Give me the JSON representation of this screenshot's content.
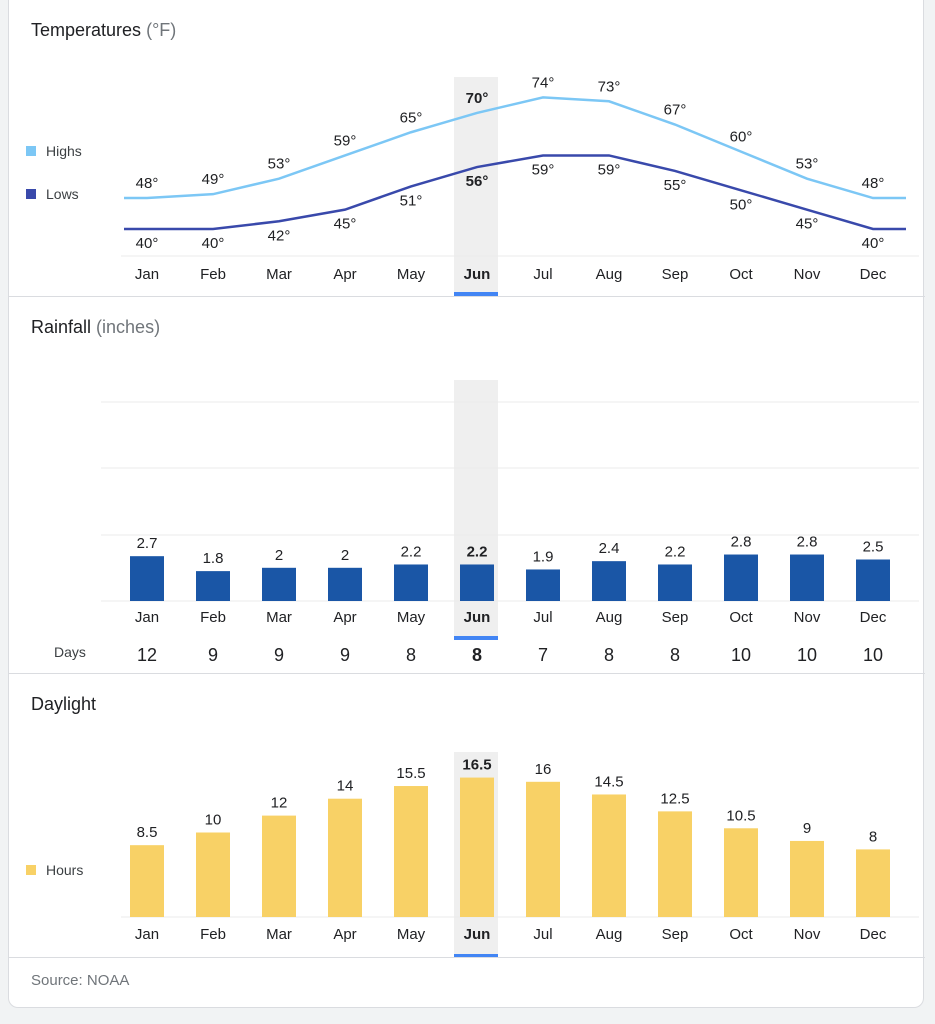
{
  "months": [
    "Jan",
    "Feb",
    "Mar",
    "Apr",
    "May",
    "Jun",
    "Jul",
    "Aug",
    "Sep",
    "Oct",
    "Nov",
    "Dec"
  ],
  "selected_month_index": 5,
  "temperatures": {
    "title": "Temperatures",
    "unit": "(°F)",
    "legend_highs": "Highs",
    "legend_lows": "Lows"
  },
  "rainfall": {
    "title": "Rainfall",
    "unit": "(inches)",
    "days_label": "Days"
  },
  "daylight": {
    "title": "Daylight",
    "legend_hours": "Hours"
  },
  "source": "Source: NOAA",
  "colors": {
    "highs": "#7cc7f5",
    "lows": "#3949ab",
    "rain": "#1a56a6",
    "daylight": "#f8d166",
    "selected_tab": "#4285f4",
    "highlight": "#efefef"
  },
  "chart_data": [
    {
      "type": "line",
      "title": "Temperatures (°F)",
      "categories": [
        "Jan",
        "Feb",
        "Mar",
        "Apr",
        "May",
        "Jun",
        "Jul",
        "Aug",
        "Sep",
        "Oct",
        "Nov",
        "Dec"
      ],
      "series": [
        {
          "name": "Highs",
          "values": [
            48,
            49,
            53,
            59,
            65,
            70,
            74,
            73,
            67,
            60,
            53,
            48
          ],
          "labels": [
            "48°",
            "49°",
            "53°",
            "59°",
            "65°",
            "70°",
            "74°",
            "73°",
            "67°",
            "60°",
            "53°",
            "48°"
          ]
        },
        {
          "name": "Lows",
          "values": [
            40,
            40,
            42,
            45,
            51,
            56,
            59,
            59,
            55,
            50,
            45,
            40
          ],
          "labels": [
            "40°",
            "40°",
            "42°",
            "45°",
            "51°",
            "56°",
            "59°",
            "59°",
            "55°",
            "50°",
            "45°",
            "40°"
          ]
        }
      ],
      "legend_position": "left"
    },
    {
      "type": "bar",
      "title": "Rainfall (inches)",
      "categories": [
        "Jan",
        "Feb",
        "Mar",
        "Apr",
        "May",
        "Jun",
        "Jul",
        "Aug",
        "Sep",
        "Oct",
        "Nov",
        "Dec"
      ],
      "values": [
        2.7,
        1.8,
        2,
        2,
        2.2,
        2.2,
        1.9,
        2.4,
        2.2,
        2.8,
        2.8,
        2.5
      ],
      "labels": [
        "2.7",
        "1.8",
        "2",
        "2",
        "2.2",
        "2.2",
        "1.9",
        "2.4",
        "2.2",
        "2.8",
        "2.8",
        "2.5"
      ],
      "days": [
        "12",
        "9",
        "9",
        "9",
        "8",
        "8",
        "7",
        "8",
        "8",
        "10",
        "10",
        "10"
      ],
      "grid": true
    },
    {
      "type": "bar",
      "title": "Daylight",
      "categories": [
        "Jan",
        "Feb",
        "Mar",
        "Apr",
        "May",
        "Jun",
        "Jul",
        "Aug",
        "Sep",
        "Oct",
        "Nov",
        "Dec"
      ],
      "series": [
        {
          "name": "Hours",
          "values": [
            8.5,
            10,
            12,
            14,
            15.5,
            16.5,
            16,
            14.5,
            12.5,
            10.5,
            9,
            8
          ],
          "labels": [
            "8.5",
            "10",
            "12",
            "14",
            "15.5",
            "16.5",
            "16",
            "14.5",
            "12.5",
            "10.5",
            "9",
            "8"
          ]
        }
      ],
      "legend_position": "left"
    }
  ]
}
